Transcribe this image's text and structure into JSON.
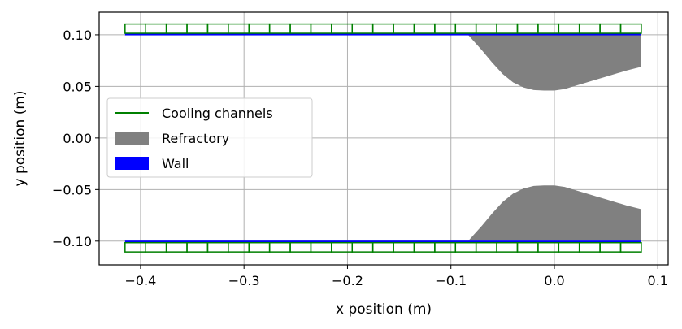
{
  "chart_data": {
    "type": "area",
    "title": "",
    "xlabel": "x position (m)",
    "ylabel": "y position (m)",
    "xlim": [
      -0.44,
      0.11
    ],
    "ylim": [
      -0.123,
      0.122
    ],
    "grid": true,
    "x_ticks": [
      -0.4,
      -0.3,
      -0.2,
      -0.1,
      0.0,
      0.1
    ],
    "x_tick_labels": [
      "−0.4",
      "−0.3",
      "−0.2",
      "−0.1",
      "0.0",
      "0.1"
    ],
    "y_ticks": [
      0.1,
      0.05,
      0.0,
      -0.05,
      -0.1
    ],
    "y_tick_labels": [
      "0.10",
      "0.05",
      "0.00",
      "−0.05",
      "−0.10"
    ],
    "legend": {
      "placement": "center-left",
      "entries": [
        {
          "label": "Cooling channels",
          "style": "line",
          "color": "#008000"
        },
        {
          "label": "Refractory",
          "style": "patch",
          "color": "#808080"
        },
        {
          "label": "Wall",
          "style": "patch",
          "color": "#0000ff"
        }
      ]
    },
    "wall": {
      "color": "#0000ff",
      "x_range": [
        -0.415,
        0.084
      ],
      "inner_radius": 0.0995,
      "outer_radius": 0.1015
    },
    "refractory": {
      "color": "#808080",
      "outer_radius": 0.0995,
      "profile_x": [
        -0.083,
        -0.07,
        -0.06,
        -0.05,
        -0.04,
        -0.03,
        -0.02,
        -0.01,
        0.0,
        0.01,
        0.02,
        0.03,
        0.04,
        0.05,
        0.06,
        0.07,
        0.084
      ],
      "profile_inner_radius": [
        0.0995,
        0.085,
        0.073,
        0.062,
        0.054,
        0.049,
        0.0465,
        0.046,
        0.046,
        0.0475,
        0.0505,
        0.0535,
        0.0565,
        0.0595,
        0.0625,
        0.0655,
        0.069
      ]
    },
    "cooling_channels": {
      "color": "#008000",
      "count": 25,
      "x_range": [
        -0.415,
        0.084
      ],
      "inner_radius": 0.1015,
      "outer_radius": 0.1105
    }
  }
}
